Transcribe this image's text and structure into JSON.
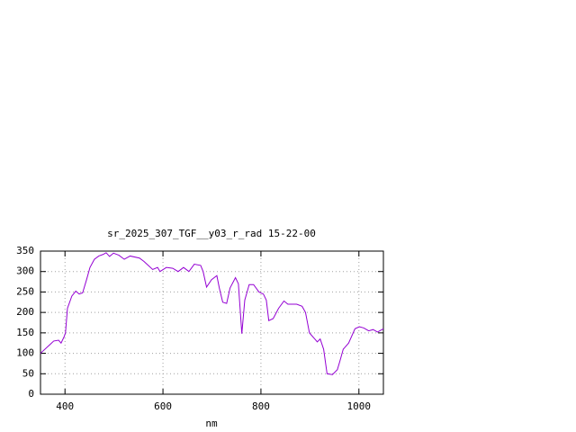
{
  "chart_data": {
    "type": "line",
    "title": "sr_2025_307_TGF__y03_r_rad 15-22-00",
    "x_label": "nm",
    "x": [
      350,
      368,
      377,
      387,
      392,
      398,
      401,
      405,
      414,
      422,
      429,
      436,
      444,
      451,
      460,
      469,
      478,
      484,
      491,
      499,
      510,
      521,
      533,
      552,
      561,
      570,
      579,
      589,
      594,
      607,
      620,
      631,
      642,
      653,
      664,
      677,
      682,
      689,
      699,
      710,
      715,
      722,
      730,
      737,
      748,
      754,
      761,
      767,
      776,
      785,
      796,
      805,
      811,
      816,
      825,
      836,
      847,
      855,
      873,
      884,
      891,
      899,
      910,
      915,
      921,
      928,
      935,
      946,
      956,
      961,
      968,
      979,
      992,
      1001,
      1010,
      1020,
      1029,
      1038,
      1050
    ],
    "series": [
      {
        "color": "#9400d3",
        "values": [
          100,
          120,
          130,
          132,
          125,
          140,
          150,
          210,
          240,
          252,
          245,
          248,
          280,
          310,
          330,
          338,
          342,
          346,
          337,
          345,
          340,
          330,
          338,
          333,
          325,
          315,
          305,
          310,
          300,
          310,
          308,
          300,
          310,
          300,
          318,
          315,
          300,
          262,
          280,
          290,
          260,
          225,
          222,
          260,
          285,
          270,
          148,
          230,
          268,
          268,
          250,
          245,
          230,
          180,
          185,
          210,
          228,
          220,
          220,
          215,
          200,
          150,
          135,
          128,
          135,
          110,
          50,
          48,
          60,
          80,
          110,
          125,
          160,
          165,
          162,
          155,
          158,
          152,
          160
        ]
      }
    ],
    "xlim": [
      350,
      1050
    ],
    "ylim": [
      0,
      350
    ],
    "xticks": [
      400,
      600,
      800,
      1000
    ],
    "yticks": [
      0,
      50,
      100,
      150,
      200,
      250,
      300,
      350
    ],
    "grid": true
  }
}
